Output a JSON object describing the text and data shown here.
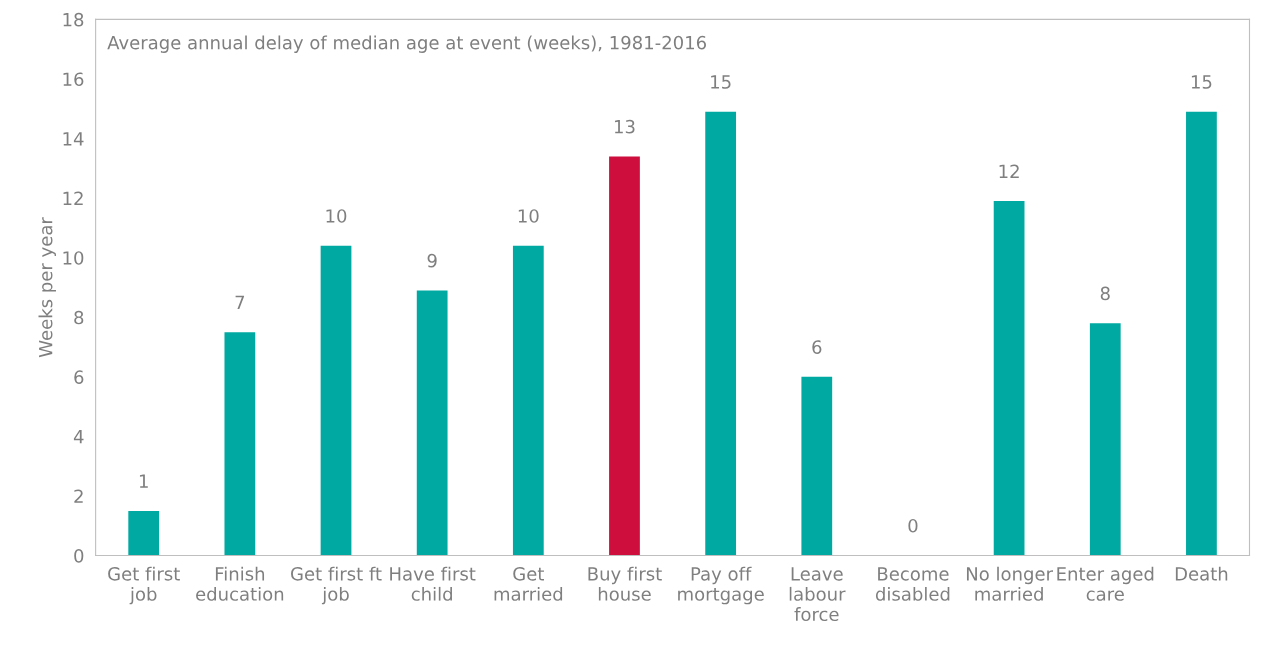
{
  "chart_data": {
    "type": "bar",
    "annotations": [
      "Average annual delay of median age at event (weeks), 1981-2016"
    ],
    "ylabel": "Weeks per year",
    "categories": [
      "Get first\njob",
      "Finish\neducation",
      "Get first ft\njob",
      "Have first\nchild",
      "Get\nmarried",
      "Buy first\nhouse",
      "Pay off\nmortgage",
      "Leave\nlabour\nforce",
      "Become\ndisabled",
      "No longer\nmarried",
      "Enter aged\ncare",
      "Death"
    ],
    "values": [
      1.5,
      7.5,
      10.4,
      8.9,
      10.4,
      13.4,
      14.9,
      6.0,
      0,
      11.9,
      7.8,
      14.9
    ],
    "value_labels": [
      "1",
      "7",
      "10",
      "9",
      "10",
      "13",
      "15",
      "6",
      "0",
      "12",
      "8",
      "15"
    ],
    "colors": [
      "#00a9a1",
      "#00a9a1",
      "#00a9a1",
      "#00a9a1",
      "#00a9a1",
      "#ce0f3e",
      "#00a9a1",
      "#00a9a1",
      "#00a9a1",
      "#00a9a1",
      "#00a9a1",
      "#00a9a1"
    ],
    "ylim": [
      0,
      18
    ],
    "yticks": [
      0,
      2,
      4,
      6,
      8,
      10,
      12,
      14,
      16,
      18
    ],
    "grid": false,
    "legend": false
  }
}
